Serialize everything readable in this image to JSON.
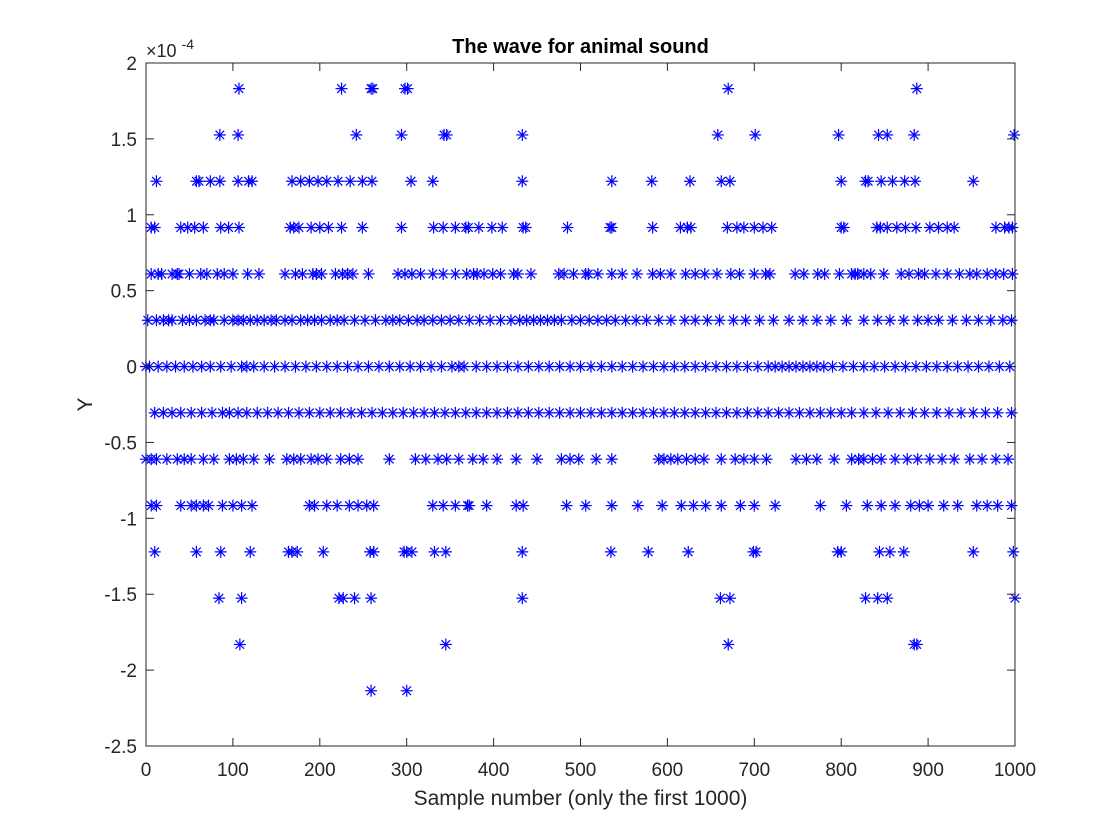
{
  "chart_data": {
    "type": "scatter",
    "title": "The wave for animal sound",
    "xlabel": "Sample number (only the first 1000)",
    "ylabel": "Y",
    "y_exponent_label": "×10",
    "y_exponent_power": "-4",
    "xlim": [
      0,
      1000
    ],
    "ylim": [
      -2.5,
      2
    ],
    "y_display_scale": 0.0001,
    "x_ticks": [
      0,
      100,
      200,
      300,
      400,
      500,
      600,
      700,
      800,
      900,
      1000
    ],
    "x_tick_labels": [
      "0",
      "100",
      "200",
      "300",
      "400",
      "500",
      "600",
      "700",
      "800",
      "900",
      "1000"
    ],
    "y_ticks": [
      -2.5,
      -2,
      -1.5,
      -1,
      -0.5,
      0,
      0.5,
      1,
      1.5,
      2
    ],
    "y_tick_labels": [
      "-2.5",
      "-2",
      "-1.5",
      "-1",
      "-0.5",
      "0",
      "0.5",
      "1",
      "1.5",
      "2"
    ],
    "marker": "asterisk",
    "marker_color": "#0000ff",
    "grid": false,
    "series": [
      {
        "levels": [
          {
            "y": 1.831,
            "x": [
              107,
              225,
              259,
              261,
              298,
              301,
              670,
              887
            ]
          },
          {
            "y": 1.526,
            "x": [
              85,
              106,
              242,
              294,
              343,
              346,
              433,
              658,
              701,
              797,
              843,
              853,
              884,
              999
            ]
          },
          {
            "y": 1.221,
            "x": [
              12,
              58,
              61,
              74,
              85,
              106,
              118,
              122,
              168,
              178,
              188,
              198,
              208,
              221,
              235,
              249,
              260,
              305,
              330,
              433,
              536,
              582,
              626,
              662,
              672,
              800,
              828,
              831,
              846,
              859,
              873,
              885,
              952
            ]
          },
          {
            "y": 0.916,
            "x": [
              6,
              10,
              40,
              48,
              56,
              66,
              86,
              95,
              107,
              166,
              170,
              176,
              190,
              200,
              210,
              225,
              249,
              294,
              331,
              342,
              356,
              368,
              371,
              383,
              398,
              410,
              434,
              437,
              485,
              534,
              536,
              583,
              615,
              623,
              627,
              669,
              680,
              688,
              700,
              710,
              720,
              800,
              803,
              841,
              845,
              853,
              864,
              874,
              886,
              902,
              912,
              922,
              930,
              978,
              988,
              993,
              997
            ]
          },
          {
            "y": 0.61,
            "x": [
              6,
              14,
              18,
              30,
              36,
              38,
              50,
              63,
              70,
              82,
              90,
              100,
              117,
              130,
              160,
              172,
              180,
              192,
              196,
              202,
              218,
              226,
              232,
              238,
              256,
              290,
              298,
              306,
              316,
              330,
              342,
              356,
              369,
              377,
              381,
              389,
              399,
              408,
              423,
              428,
              443,
              475,
              481,
              492,
              506,
              509,
              520,
              536,
              548,
              565,
              583,
              592,
              604,
              621,
              632,
              643,
              657,
              673,
              683,
              700,
              713,
              718,
              747,
              757,
              773,
              781,
              798,
              812,
              816,
              819,
              826,
              834,
              849,
              869,
              878,
              889,
              896,
              909,
              922,
              936,
              948,
              956,
              968,
              978,
              987,
              997
            ]
          },
          {
            "y": 0.305,
            "x": [
              2,
              12,
              20,
              26,
              30,
              42,
              50,
              58,
              68,
              74,
              78,
              90,
              100,
              106,
              112,
              120,
              128,
              136,
              144,
              150,
              160,
              168,
              178,
              186,
              194,
              202,
              212,
              220,
              228,
              240,
              252,
              264,
              276,
              284,
              292,
              302,
              312,
              320,
              330,
              340,
              350,
              360,
              372,
              384,
              396,
              408,
              420,
              430,
              438,
              446,
              454,
              462,
              470,
              478,
              490,
              500,
              510,
              520,
              530,
              540,
              552,
              564,
              576,
              590,
              604,
              620,
              632,
              646,
              660,
              676,
              690,
              706,
              722,
              740,
              756,
              772,
              788,
              806,
              826,
              842,
              856,
              872,
              888,
              900,
              912,
              928,
              944,
              958,
              972,
              986,
              996
            ]
          },
          {
            "y": 0.0,
            "x": [
              0,
              4,
              14,
              24,
              34,
              44,
              54,
              64,
              74,
              86,
              98,
              110,
              116,
              124,
              136,
              148,
              160,
              172,
              184,
              196,
              208,
              220,
              232,
              244,
              256,
              268,
              280,
              292,
              304,
              316,
              328,
              340,
              352,
              360,
              366,
              380,
              392,
              404,
              416,
              428,
              440,
              452,
              464,
              476,
              488,
              500,
              512,
              524,
              536,
              548,
              560,
              572,
              584,
              596,
              608,
              620,
              632,
              644,
              656,
              668,
              680,
              692,
              704,
              716,
              724,
              732,
              740,
              748,
              756,
              764,
              772,
              780,
              790,
              802,
              814,
              826,
              838,
              850,
              862,
              874,
              886,
              898,
              910,
              922,
              934,
              946,
              958,
              970,
              982,
              994
            ]
          },
          {
            "y": -0.305,
            "x": [
              10,
              20,
              30,
              40,
              52,
              64,
              76,
              88,
              96,
              106,
              116,
              128,
              140,
              152,
              164,
              176,
              188,
              200,
              212,
              224,
              236,
              248,
              260,
              272,
              284,
              296,
              308,
              320,
              332,
              344,
              356,
              368,
              380,
              392,
              404,
              416,
              428,
              440,
              452,
              464,
              476,
              488,
              500,
              512,
              524,
              536,
              548,
              560,
              572,
              584,
              596,
              608,
              620,
              632,
              644,
              656,
              668,
              680,
              692,
              704,
              716,
              728,
              740,
              752,
              764,
              776,
              788,
              800,
              812,
              826,
              840,
              854,
              868,
              882,
              896,
              910,
              924,
              938,
              952,
              966,
              980,
              996
            ]
          },
          {
            "y": -0.61,
            "x": [
              0,
              6,
              12,
              24,
              36,
              44,
              52,
              66,
              78,
              96,
              104,
              112,
              124,
              142,
              162,
              170,
              178,
              190,
              198,
              208,
              224,
              234,
              244,
              280,
              310,
              322,
              336,
              346,
              360,
              376,
              388,
              404,
              426,
              450,
              478,
              488,
              498,
              518,
              536,
              590,
              596,
              604,
              612,
              622,
              632,
              642,
              662,
              678,
              688,
              700,
              714,
              748,
              760,
              772,
              792,
              812,
              820,
              826,
              836,
              846,
              862,
              876,
              888,
              902,
              916,
              930,
              948,
              962,
              978,
              992
            ]
          },
          {
            "y": -0.916,
            "x": [
              6,
              12,
              40,
              52,
              58,
              66,
              72,
              88,
              100,
              110,
              122,
              188,
              194,
              208,
              220,
              234,
              244,
              254,
              262,
              330,
              342,
              356,
              370,
              372,
              392,
              426,
              434,
              484,
              506,
              536,
              566,
              594,
              616,
              630,
              644,
              662,
              684,
              700,
              724,
              776,
              806,
              830,
              846,
              862,
              880,
              890,
              900,
              918,
              934,
              956,
              968,
              980,
              996
            ]
          },
          {
            "y": -1.221,
            "x": [
              10,
              58,
              86,
              120,
              164,
              168,
              174,
              204,
              258,
              262,
              297,
              300,
              306,
              332,
              345,
              433,
              535,
              578,
              624,
              699,
              702,
              796,
              800,
              844,
              856,
              872,
              952,
              998
            ]
          },
          {
            "y": -1.526,
            "x": [
              84,
              110,
              222,
              227,
              240,
              259,
              433,
              661,
              672,
              828,
              842,
              853,
              1000
            ]
          },
          {
            "y": -1.831,
            "x": [
              108,
              345,
              670,
              884,
              887
            ]
          },
          {
            "y": -2.136,
            "x": [
              259,
              300
            ]
          }
        ]
      }
    ]
  }
}
